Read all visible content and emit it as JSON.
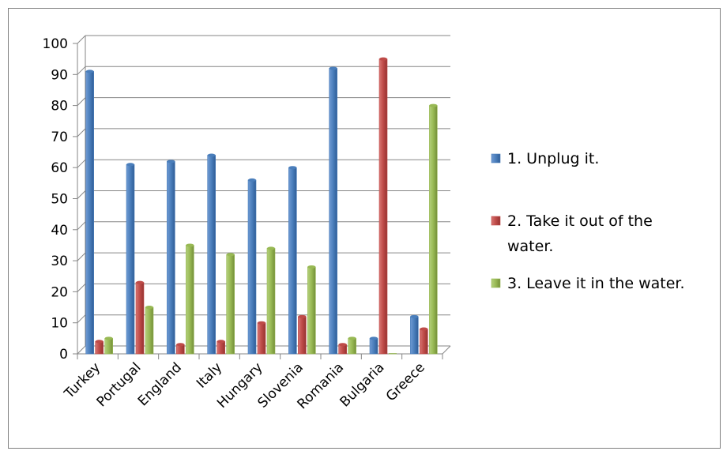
{
  "chart_data": {
    "type": "bar",
    "categories": [
      "Turkey",
      "Portugal",
      "England",
      "Italy",
      "Hungary",
      "Slovenia",
      "Romania",
      "Bulgaria",
      "Greece"
    ],
    "series": [
      {
        "name": "1. Unplug it.",
        "color": "#4a7ebb",
        "values": [
          91,
          61,
          62,
          64,
          56,
          60,
          92,
          5,
          12
        ]
      },
      {
        "name": "2. Take it out of the water.",
        "color": "#be4b48",
        "values": [
          4,
          23,
          3,
          4,
          10,
          12,
          3,
          95,
          8
        ]
      },
      {
        "name": "3. Leave it in the water.",
        "color": "#98b954",
        "values": [
          5,
          15,
          35,
          32,
          34,
          28,
          5,
          0,
          80
        ]
      }
    ],
    "legend_lines": [
      [
        "1. Unplug it."
      ],
      [
        "2. Take it out of the",
        "water."
      ],
      [
        "3. Leave it in the water."
      ]
    ],
    "ylim": [
      0,
      100
    ],
    "yticks": [
      0,
      10,
      20,
      30,
      40,
      50,
      60,
      70,
      80,
      90,
      100
    ],
    "grid": true,
    "legend_position": "right"
  }
}
